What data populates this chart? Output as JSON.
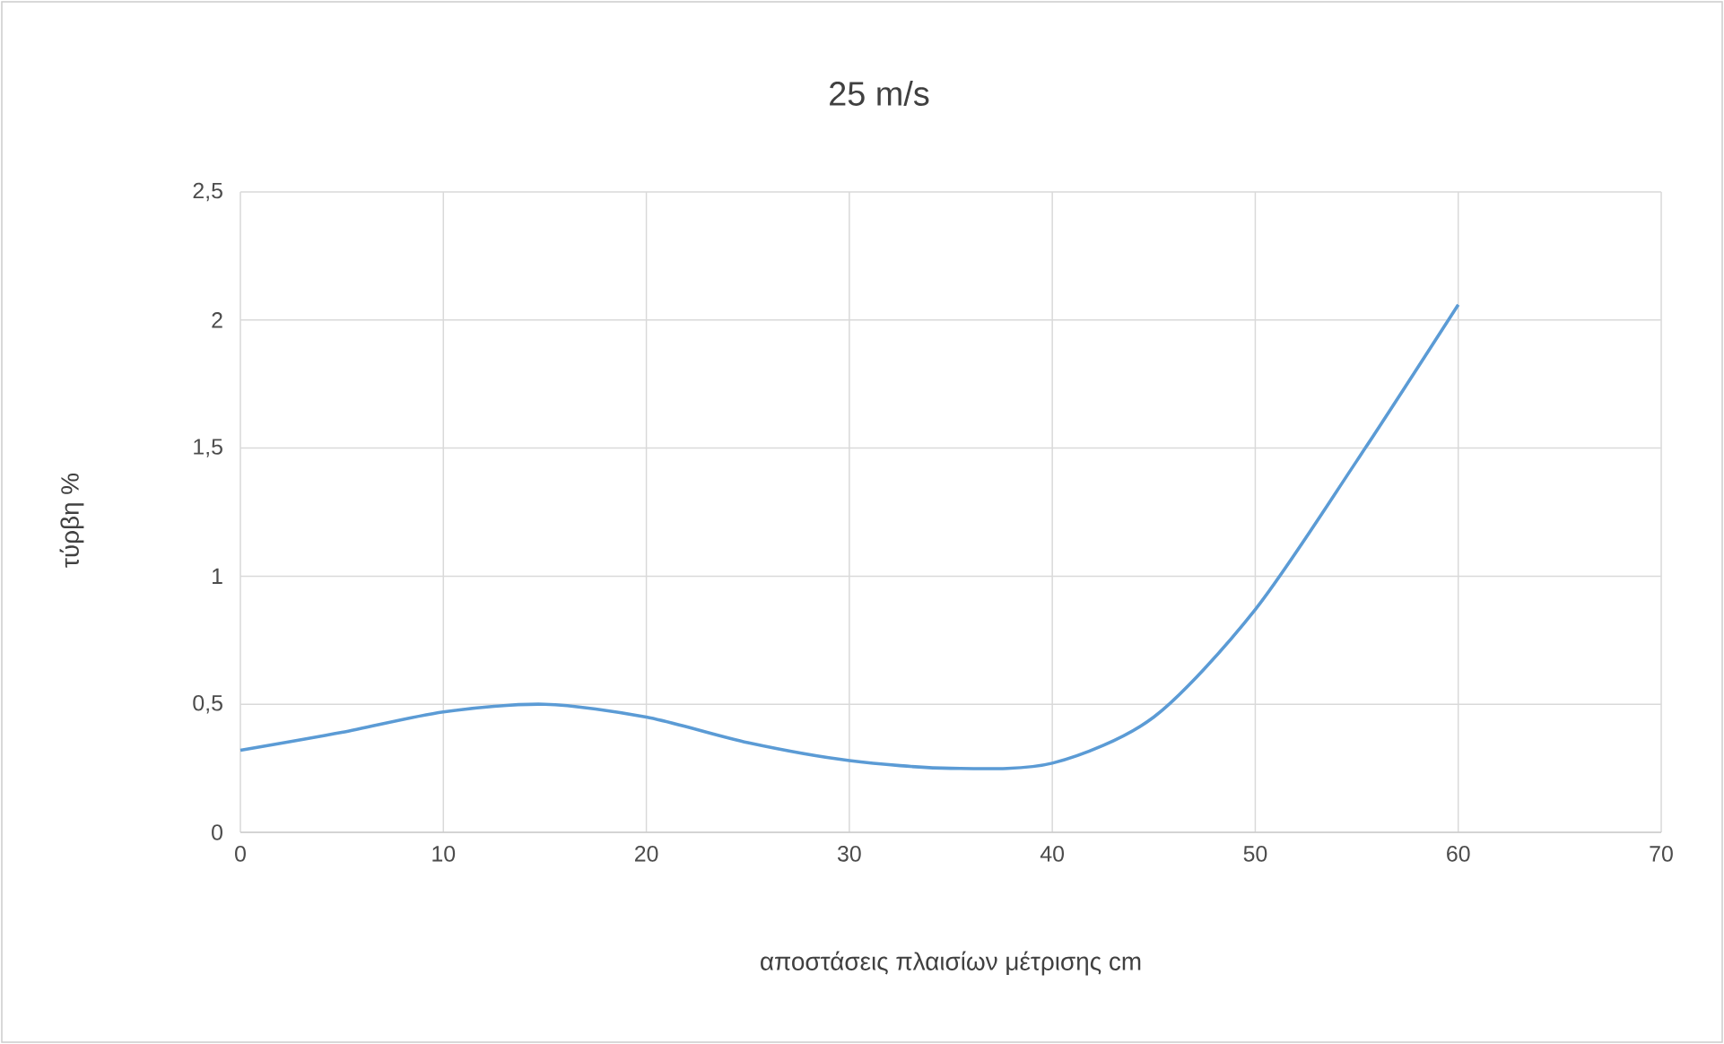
{
  "chart_data": {
    "type": "line",
    "title": "25 m/s",
    "xlabel": "αποστάσεις πλαισίων μέτρισης  cm",
    "ylabel": "τύρβη %",
    "x": [
      0,
      5,
      10,
      15,
      20,
      25,
      30,
      35,
      40,
      45,
      50,
      55,
      60
    ],
    "series": [
      {
        "color": "#5b9bd5",
        "values": [
          0.32,
          0.39,
          0.47,
          0.5,
          0.45,
          0.35,
          0.28,
          0.25,
          0.27,
          0.45,
          0.87,
          1.45,
          2.06
        ]
      }
    ],
    "xlim": [
      0,
      70
    ],
    "xticks": [
      0,
      10,
      20,
      30,
      40,
      50,
      60,
      70
    ],
    "ylim": [
      0,
      2.5
    ],
    "yticks": [
      0,
      {
        "value": 0.5,
        "label": "0,5"
      },
      1,
      {
        "value": 1.5,
        "label": "1,5"
      },
      2,
      {
        "value": 2.5,
        "label": "2,5"
      }
    ],
    "grid": true,
    "marker": "none",
    "line_style": "solid"
  }
}
